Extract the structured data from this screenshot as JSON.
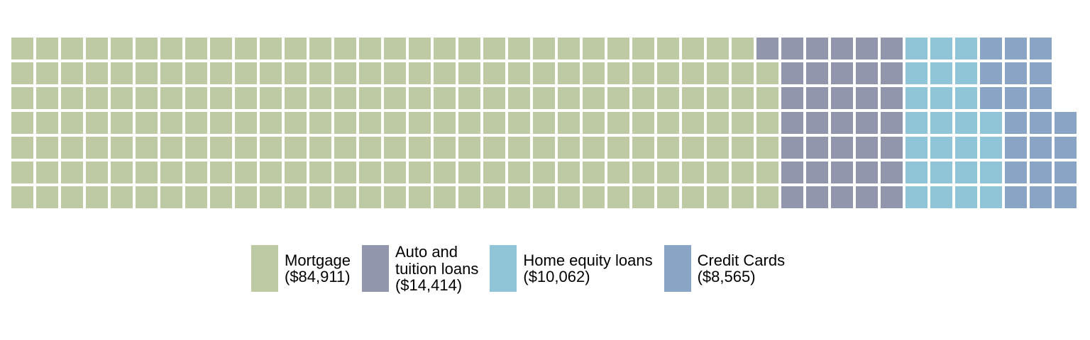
{
  "figure": {
    "background_color": "#ffffff"
  },
  "chart_data": {
    "type": "waffle",
    "title": "",
    "legend_position": "bottom-center",
    "grid": {
      "rows": 7,
      "columns": 43,
      "total_cells": 298,
      "fill_order": "column-major, bottom-to-top, left-to-right",
      "cell_gap_color": "#ffffff"
    },
    "series": [
      {
        "name": "Mortgage",
        "value": 84911,
        "value_label": "($84,911)",
        "cells": 216,
        "color": "#bdcaa3",
        "legend_lines": [
          "Mortgage",
          "($84,911)"
        ]
      },
      {
        "name": "Auto and tuition loans",
        "value": 14414,
        "value_label": "($14,414)",
        "cells": 36,
        "color": "#9296ac",
        "legend_lines": [
          "Auto and",
          "tuition loans",
          "($14,414)"
        ]
      },
      {
        "name": "Home equity loans",
        "value": 10062,
        "value_label": "($10,062)",
        "cells": 25,
        "color": "#90c5d7",
        "legend_lines": [
          "Home equity loans",
          "($10,062)"
        ]
      },
      {
        "name": "Credit Cards",
        "value": 8565,
        "value_label": "($8,565)",
        "cells": 21,
        "color": "#89a4c4",
        "legend_lines": [
          "Credit Cards",
          "($8,565)"
        ]
      }
    ]
  }
}
